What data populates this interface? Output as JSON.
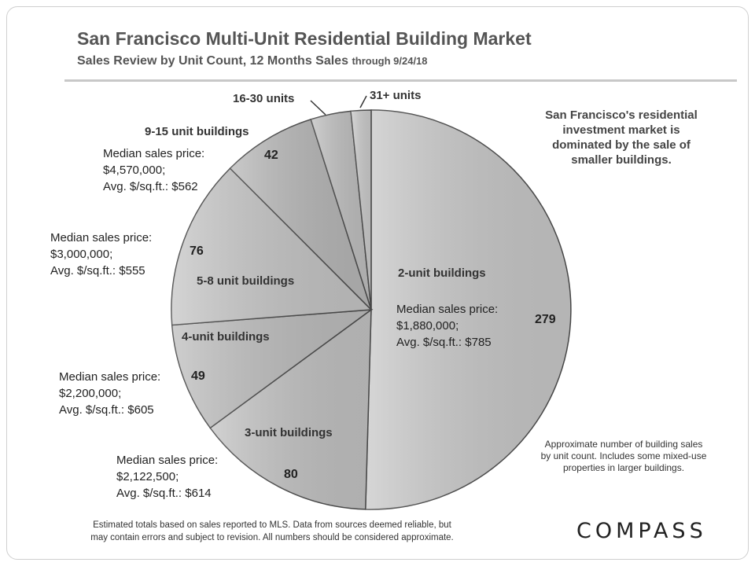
{
  "header": {
    "title": "San Francisco Multi-Unit Residential Building Market",
    "subtitle_main": "Sales Review by Unit Count, 12 Months Sales",
    "subtitle_small": "through 9/24/18"
  },
  "chart_data": {
    "type": "pie",
    "slices": [
      {
        "label": "2-unit buildings",
        "value": 279,
        "value_label": "279",
        "median_line1": "Median sales price:",
        "median_line2": "$1,880,000;",
        "median_line3": "Avg. $/sq.ft.: $785",
        "color": "#c9c9c9"
      },
      {
        "label": "3-unit buildings",
        "value": 80,
        "value_label": "80",
        "median_line1": "Median sales price:",
        "median_line2": "$2,122,500;",
        "median_line3": "Avg. $/sq.ft.: $614",
        "color": "#c3c3c3"
      },
      {
        "label": "4-unit buildings",
        "value": 49,
        "value_label": "49",
        "median_line1": "Median sales price:",
        "median_line2": "$2,200,000;",
        "median_line3": "Avg. $/sq.ft.: $605",
        "color": "#bebebe"
      },
      {
        "label": "5-8 unit buildings",
        "value": 76,
        "value_label": "76",
        "median_line1": "Median sales price:",
        "median_line2": "$3,000,000;",
        "median_line3": "Avg. $/sq.ft.: $555",
        "color": "#c6c6c6"
      },
      {
        "label": "9-15 unit buildings",
        "value": 42,
        "value_label": "42",
        "median_line1": "Median sales price:",
        "median_line2": "$4,570,000;",
        "median_line3": "Avg. $/sq.ft.: $562",
        "color": "#b8b8b8"
      },
      {
        "label": "16-30 units",
        "value": 18,
        "value_label": "",
        "color": "#c0c0c0"
      },
      {
        "label": "31+ units",
        "value": 9,
        "value_label": "",
        "color": "#cdcdcd"
      }
    ]
  },
  "callout": {
    "line1": "San Francisco's residential",
    "line2": "investment market is",
    "line3": "dominated by the sale of",
    "line4": "smaller buildings."
  },
  "note": {
    "line1": "Approximate number of  building sales",
    "line2": "by unit count. Includes some mixed-use",
    "line3": "properties in larger buildings."
  },
  "footer": {
    "line1": "Estimated totals based on sales reported to MLS. Data from sources deemed reliable, but",
    "line2": "may contain errors and subject to revision. All numbers should be considered  approximate."
  },
  "logo": {
    "text": "COMPASS"
  }
}
